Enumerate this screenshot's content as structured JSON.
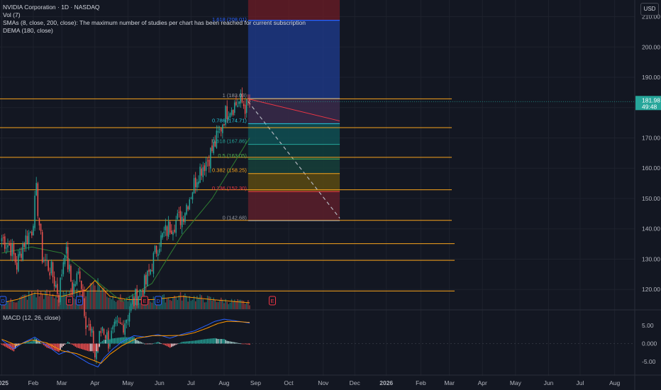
{
  "header": {
    "symbol_line": "NVIDIA Corporation · 1D · NASDAQ",
    "vol_line": "Vol (7)",
    "sma_line": "SMAs (8, close, 200, close): The maximum number of studies per chart has been reached for current subscription",
    "dema_line": "DEMA (180, close)",
    "macd_line": "MACD (12, 26, close)",
    "currency_button": "USD"
  },
  "price_tag": {
    "price": "181.98",
    "countdown": "49:48"
  },
  "earnings_markers": [
    "D",
    "E",
    "D",
    "E",
    "D",
    "E"
  ],
  "colors": {
    "background": "#131722",
    "up": "#26a69a",
    "down": "#ef5350",
    "fib_line": "#f7a31c",
    "sma_green": "#2e7d32",
    "dema_orange": "#ff9800",
    "macd_blue": "#2962ff",
    "signal_orange": "#ff9800",
    "target_box": "#1e3a8a",
    "stop_box": "#6d1c26"
  },
  "chart_data": [
    {
      "type": "candlestick",
      "title": "NVIDIA Corporation · 1D · NASDAQ",
      "y_axis": {
        "ticks": [
          120,
          130,
          140,
          150,
          160,
          170,
          180,
          190,
          200,
          210
        ],
        "ylim": [
          113.5,
          215.5
        ],
        "position": "right"
      },
      "x_axis": {
        "ticks": [
          "2025",
          "Feb",
          "Mar",
          "Apr",
          "May",
          "Jun",
          "Jul",
          "Aug",
          "Sep",
          "Oct",
          "Nov",
          "Dec",
          "2026",
          "Feb",
          "Mar",
          "Apr",
          "May",
          "Jun",
          "Jul",
          "Aug"
        ],
        "tick_index": [
          0,
          21,
          40,
          62,
          84,
          105,
          126,
          148,
          169,
          191,
          214,
          235,
          256,
          279,
          298,
          320,
          342,
          364,
          385,
          408
        ],
        "bold_ticks": [
          "2025",
          "2026"
        ]
      },
      "last_price": 181.98,
      "ohlc_trend": {
        "note_index": "bar index since first visible trading day",
        "price_path": [
          [
            0,
            137
          ],
          [
            6,
            134
          ],
          [
            10,
            128
          ],
          [
            14,
            135
          ],
          [
            20,
            140
          ],
          [
            23,
            152
          ],
          [
            27,
            131
          ],
          [
            33,
            126
          ],
          [
            38,
            118
          ],
          [
            42,
            134
          ],
          [
            47,
            120
          ],
          [
            52,
            126
          ],
          [
            56,
            110
          ],
          [
            60,
            104
          ],
          [
            62,
            98
          ],
          [
            67,
            108
          ],
          [
            71,
            103
          ],
          [
            76,
            107
          ],
          [
            80,
            108
          ],
          [
            84,
            112
          ],
          [
            90,
            118
          ],
          [
            96,
            122
          ],
          [
            104,
            135
          ],
          [
            112,
            141
          ],
          [
            120,
            144
          ],
          [
            126,
            152
          ],
          [
            131,
            159
          ],
          [
            137,
            163
          ],
          [
            141,
            167
          ],
          [
            145,
            172
          ],
          [
            148,
            177
          ],
          [
            151,
            180
          ],
          [
            155,
            181
          ],
          [
            159,
            182
          ],
          [
            163,
            180
          ],
          [
            165,
            181.98
          ]
        ],
        "volatility": 4.2
      },
      "sma_line": {
        "name": "SMA",
        "path": [
          [
            0,
            132
          ],
          [
            20,
            134
          ],
          [
            40,
            132
          ],
          [
            60,
            124
          ],
          [
            80,
            116
          ],
          [
            100,
            122
          ],
          [
            120,
            138
          ],
          [
            140,
            150
          ],
          [
            160,
            166
          ],
          [
            165,
            170
          ]
        ]
      },
      "dema_line": {
        "name": "DEMA (180, close)",
        "path": [
          [
            0,
            140
          ],
          [
            40,
            147
          ],
          [
            80,
            141
          ],
          [
            110,
            135
          ],
          [
            130,
            141
          ],
          [
            150,
            156
          ],
          [
            165,
            175
          ]
        ]
      },
      "fibonacci_levels": [
        {
          "ratio": "1",
          "price": 183.0,
          "label": "1 (183.03)"
        },
        {
          "ratio": "0.786",
          "price": 174.71,
          "label": "0.786 (174.71)"
        },
        {
          "ratio": "0.618",
          "price": 167.86,
          "label": "0.618 (167.86)"
        },
        {
          "ratio": "0.5",
          "price": 163.05,
          "label": "0.5 (163.05)"
        },
        {
          "ratio": "0.382",
          "price": 158.25,
          "label": "0.382 (158.25)"
        },
        {
          "ratio": "0.236",
          "price": 152.3,
          "label": "0.236 (152.30)"
        },
        {
          "ratio": "0",
          "price": 142.68,
          "label": "0 (142.68)"
        },
        {
          "ratio": "1.618",
          "price": 208.01,
          "label": "1.618 (208.01)"
        }
      ],
      "horizontal_levels": [
        182.9,
        173.4,
        163.6,
        152.9,
        142.8,
        135.1,
        129.6,
        119.5
      ],
      "position_tool": {
        "entry": 182.9,
        "target": 208.8,
        "stop_top": 182.9,
        "stop_bottom": 142.68,
        "top_red": 215.5,
        "start_index": 164,
        "end_index": 225
      },
      "projection_line": {
        "from": [
          164,
          182.0
        ],
        "to": [
          225,
          143.5
        ]
      },
      "red_line": {
        "from": [
          164,
          182.9
        ],
        "to": [
          225,
          175.6
        ]
      }
    },
    {
      "type": "bar",
      "name": "Vol (7)",
      "panel": "volume overlay",
      "volume_path": [
        [
          0,
          2
        ],
        [
          10,
          3
        ],
        [
          22,
          5
        ],
        [
          40,
          4
        ],
        [
          56,
          6
        ],
        [
          62,
          9
        ],
        [
          66,
          7
        ],
        [
          72,
          4
        ],
        [
          84,
          3
        ],
        [
          100,
          3
        ],
        [
          120,
          4
        ],
        [
          140,
          3
        ],
        [
          165,
          2
        ]
      ]
    },
    {
      "type": "line",
      "title": "MACD (12, 26, close)",
      "y_axis": {
        "ticks": [
          5.0,
          0.0,
          -5.0
        ],
        "tick_labels": [
          "5.00",
          "0.000",
          "-5.00"
        ],
        "ylim": [
          -7,
          8
        ]
      },
      "macd_path": [
        [
          0,
          1
        ],
        [
          8,
          -1.5
        ],
        [
          14,
          0.2
        ],
        [
          22,
          1.8
        ],
        [
          30,
          -0.5
        ],
        [
          38,
          -3
        ],
        [
          44,
          -2
        ],
        [
          50,
          -3.5
        ],
        [
          58,
          -5.5
        ],
        [
          64,
          -6.5
        ],
        [
          68,
          -4
        ],
        [
          74,
          -1.5
        ],
        [
          80,
          0.5
        ],
        [
          88,
          2.2
        ],
        [
          96,
          1.8
        ],
        [
          104,
          2.5
        ],
        [
          112,
          1.5
        ],
        [
          120,
          2.6
        ],
        [
          128,
          3.5
        ],
        [
          136,
          5.0
        ],
        [
          142,
          6.2
        ],
        [
          148,
          6.8
        ],
        [
          156,
          6.3
        ],
        [
          165,
          5.7
        ]
      ],
      "signal_path": [
        [
          0,
          1.2
        ],
        [
          10,
          -0.5
        ],
        [
          20,
          1.0
        ],
        [
          30,
          0.2
        ],
        [
          40,
          -2
        ],
        [
          50,
          -2.8
        ],
        [
          60,
          -4.5
        ],
        [
          66,
          -5.5
        ],
        [
          72,
          -3
        ],
        [
          80,
          -0.6
        ],
        [
          90,
          1.5
        ],
        [
          100,
          2.2
        ],
        [
          110,
          2.2
        ],
        [
          120,
          2.3
        ],
        [
          128,
          3.0
        ],
        [
          136,
          4.2
        ],
        [
          144,
          5.6
        ],
        [
          150,
          6.2
        ],
        [
          158,
          6.1
        ],
        [
          165,
          5.9
        ]
      ]
    }
  ]
}
